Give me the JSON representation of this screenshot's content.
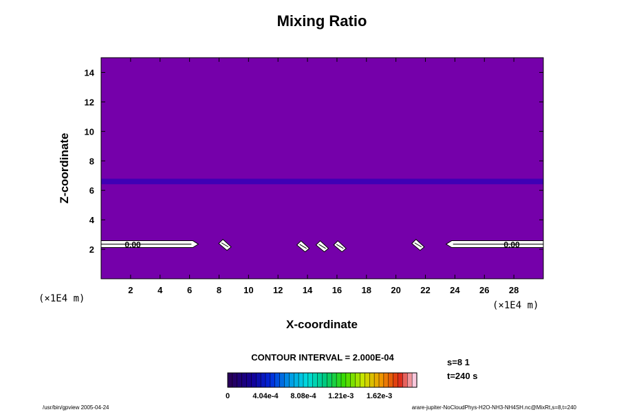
{
  "chart_data": {
    "type": "heatmap",
    "title": "Mixing Ratio",
    "xlabel": "X-coordinate",
    "ylabel": "Z-coordinate",
    "x_unit": "(×1E4 m)",
    "y_unit": "(×1E4 m)",
    "xlim": [
      0,
      30
    ],
    "ylim": [
      0,
      15
    ],
    "x_ticks": [
      2,
      4,
      6,
      8,
      10,
      12,
      14,
      16,
      18,
      20,
      22,
      24,
      26,
      28
    ],
    "y_ticks": [
      2,
      4,
      6,
      8,
      10,
      12,
      14
    ],
    "background_color": "#7500aa",
    "band": {
      "z": 6.6,
      "color": "#3f00b5"
    },
    "contours": [
      {
        "label": "0.00",
        "x": [
          0,
          6.5
        ],
        "z": 2.35
      },
      {
        "label": "0.00",
        "x": [
          23.5,
          30
        ],
        "z": 2.35
      }
    ],
    "small_contours": [
      {
        "x": 8.4,
        "z": 2.3
      },
      {
        "x": 13.7,
        "z": 2.2
      },
      {
        "x": 15.0,
        "z": 2.2
      },
      {
        "x": 16.2,
        "z": 2.2
      },
      {
        "x": 21.5,
        "z": 2.3
      }
    ],
    "contour_interval": "CONTOUR INTERVAL = 2.000E-04",
    "colorbar": {
      "ticks": [
        "0",
        "4.04e-4",
        "8.08e-4",
        "1.21e-3",
        "1.62e-3"
      ],
      "min": 0,
      "max": 0.00202,
      "segments": 40
    },
    "info": [
      "s=8 1",
      "t=240 s"
    ],
    "footer_left": "/usr/bin/gpview 2005-04-24",
    "footer_right": "arare-jupiter-NoCloudPhys-H2O-NH3-NH4SH.nc@MixRt,s=8,t=240"
  }
}
